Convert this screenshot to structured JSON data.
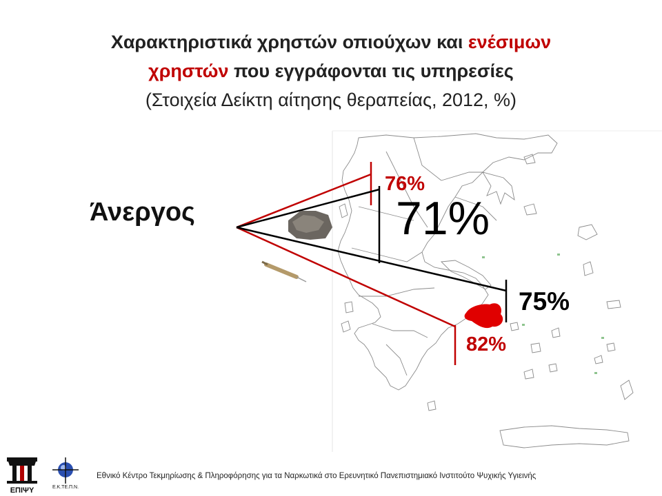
{
  "title": {
    "line1_part1": "Χαρακτηριστικά χρηστών οπιούχων και ",
    "line1_part2_red": "ενέσιμων",
    "line2_part1_red": "χρηστών",
    "line2_part2": " που εγγράφονται τις υπηρεσίες",
    "line3": "(Στοιχεία Δείκτη αίτησης θεραπείας, 2012, %)"
  },
  "category_label": "Άνεργος",
  "values": {
    "injecting_athens": "76%",
    "all_greece": "71%",
    "athens": "75%",
    "injecting_greece": "82%"
  },
  "footer": {
    "text": "Εθνικό Κέντρο Τεκμηρίωσης & Πληροφόρησης για τα Ναρκωτικά στο Ερευνητικό Πανεπιστημιακό Ινστιτούτο Ψυχικής Υγιεινής",
    "logo1_text": "ΕΠΙΨΥ",
    "logo2_text": "Ε.Κ.ΤΕ.Π.Ν."
  },
  "colors": {
    "accent_red": "#c00000",
    "blob_red": "#e00000",
    "text": "#222222"
  }
}
